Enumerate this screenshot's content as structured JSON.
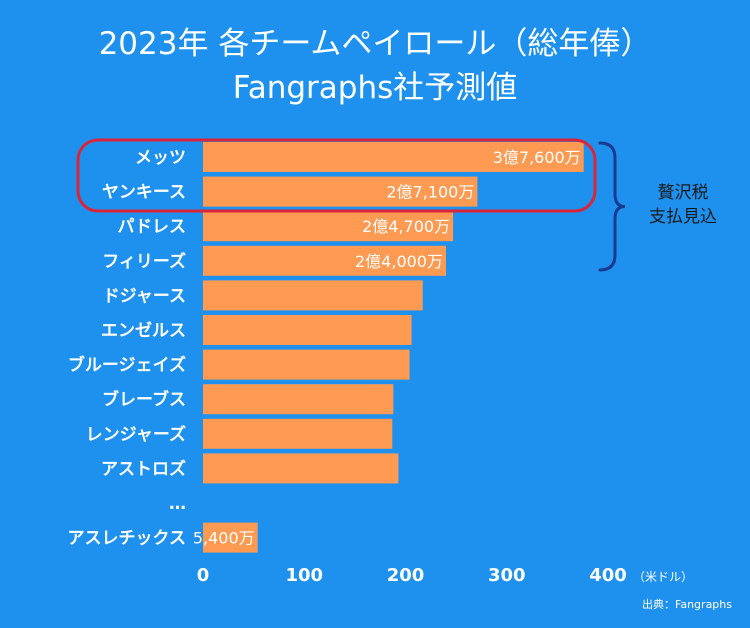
{
  "title": {
    "line1": "2023年 各チームペイロール（総年俸）",
    "line2": "Fangraphs社予測値"
  },
  "chart_data": {
    "type": "bar",
    "orientation": "horizontal",
    "categories": [
      "メッツ",
      "ヤンキース",
      "パドレス",
      "フィリーズ",
      "ドジャース",
      "エンゼルス",
      "ブルージェイズ",
      "ブレーブス",
      "レンジャーズ",
      "アストロズ",
      "…",
      "アスレチックス"
    ],
    "values": [
      376,
      271,
      247,
      240,
      217,
      206,
      204,
      188,
      187,
      193,
      null,
      54
    ],
    "data_labels": [
      "3億7,600万",
      "2億7,100万",
      "2億4,700万",
      "2億4,000万",
      "",
      "",
      "",
      "",
      "",
      "",
      "",
      "5,400万"
    ],
    "xticks": [
      "0",
      "100",
      "200",
      "300",
      "400"
    ],
    "xtick_values": [
      0,
      100,
      200,
      300,
      400
    ],
    "xlim": [
      0,
      400
    ],
    "unit": "（米ドル）",
    "bar_color": "#ff9a52",
    "highlight_color": "#d9253a",
    "bracket_color": "#1a3a8f",
    "annotation": [
      "贅沢税",
      "支払見込"
    ]
  },
  "source": "出典：Fangraphs"
}
